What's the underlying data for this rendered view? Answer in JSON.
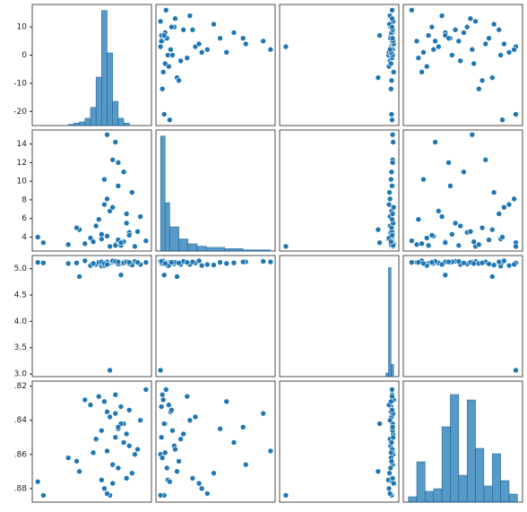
{
  "chart_data": {
    "type": "pairplot",
    "color": "#1f77b4",
    "variables": [
      {
        "values": [
          5,
          2,
          8,
          -2,
          12,
          3,
          0,
          6,
          10,
          -6,
          4,
          1,
          7,
          -8,
          9,
          16,
          -21,
          -23,
          14,
          2,
          -12,
          5,
          11,
          3,
          -1,
          6,
          8,
          0,
          4,
          -4,
          13,
          7,
          1,
          9,
          -9,
          5,
          2,
          10,
          -3,
          6
        ],
        "lim": [
          -25,
          18
        ],
        "ticks": [
          -20,
          -10,
          0,
          10
        ]
      },
      {
        "values": [
          3.2,
          4.1,
          3.5,
          5.2,
          3.0,
          6.8,
          3.8,
          9.5,
          4.5,
          3.3,
          12.3,
          7.5,
          3.1,
          4.8,
          5.5,
          3.6,
          3.4,
          4.0,
          6.2,
          15.0,
          3.2,
          14.2,
          8.8,
          3.0,
          5.9,
          3.7,
          11.0,
          4.3,
          7.2,
          3.9,
          4.6,
          3.4,
          10.2,
          6.5,
          5.0,
          3.1,
          8.1,
          4.2,
          3.5,
          12.0
        ],
        "lim": [
          2.5,
          15.5
        ],
        "ticks": [
          4,
          6,
          8,
          10,
          12,
          14
        ]
      },
      {
        "values": [
          5.12,
          5.1,
          5.13,
          5.08,
          5.14,
          5.11,
          5.05,
          5.12,
          5.09,
          5.15,
          5.13,
          5.06,
          5.1,
          4.85,
          5.14,
          5.12,
          5.11,
          5.12,
          5.08,
          5.13,
          5.1,
          5.14,
          5.07,
          3.07,
          5.12,
          5.09,
          5.11,
          5.13,
          5.15,
          5.06,
          5.12,
          4.88,
          5.1,
          5.13,
          5.11,
          5.14,
          5.08,
          5.12,
          5.1,
          5.13
        ],
        "lim": [
          2.95,
          5.25
        ],
        "ticks": [
          {
            "value": 3,
            "label": "3.0"
          },
          3.5,
          {
            "value": 4,
            "label": "4.0"
          },
          4.5,
          {
            "value": 5,
            "label": "5.0"
          }
        ]
      },
      {
        "values": [
          0.825,
          0.835,
          0.842,
          0.851,
          0.86,
          0.838,
          0.875,
          0.845,
          0.855,
          0.828,
          0.866,
          0.88,
          0.832,
          0.87,
          0.848,
          0.822,
          0.884,
          0.876,
          0.84,
          0.858,
          0.862,
          0.836,
          0.871,
          0.884,
          0.826,
          0.868,
          0.853,
          0.846,
          0.877,
          0.831,
          0.857,
          0.842,
          0.829,
          0.874,
          0.864,
          0.85,
          0.883,
          0.834,
          0.859,
          0.844
        ],
        "lim": [
          0.817,
          0.888
        ],
        "inverted": true,
        "ticks": [
          {
            "value": 0.82,
            "label": ".82"
          },
          {
            "value": 0.84,
            "label": ".84"
          },
          {
            "value": 0.86,
            "label": ".86"
          },
          {
            "value": 0.88,
            "label": ".88"
          }
        ]
      }
    ],
    "histograms": [
      {
        "bins": [
          -12,
          -10,
          -8,
          -6,
          -4,
          -2,
          0,
          2,
          4,
          6,
          8,
          10
        ],
        "counts": [
          1,
          2,
          3,
          6,
          15,
          40,
          95,
          60,
          20,
          6,
          2
        ],
        "ylim": [
          0,
          100
        ]
      },
      {
        "bins": [
          3,
          3.5,
          4,
          5,
          6,
          7,
          8,
          10,
          12,
          15
        ],
        "counts": [
          95,
          40,
          20,
          10,
          6,
          4,
          3,
          2,
          1
        ],
        "ylim": [
          0,
          100
        ]
      },
      {
        "bins": [
          5.0,
          5.05,
          5.1,
          5.15
        ],
        "counts": [
          3,
          90,
          10
        ],
        "ylim": [
          0,
          100
        ]
      },
      {
        "bins": [
          0.82,
          0.825,
          0.83,
          0.835,
          0.84,
          0.845,
          0.85,
          0.855,
          0.86,
          0.865,
          0.87,
          0.875,
          0.88,
          0.885
        ],
        "counts": [
          2,
          15,
          4,
          5,
          28,
          40,
          10,
          38,
          20,
          6,
          18,
          8,
          3
        ],
        "ylim": [
          0,
          45
        ]
      }
    ]
  }
}
